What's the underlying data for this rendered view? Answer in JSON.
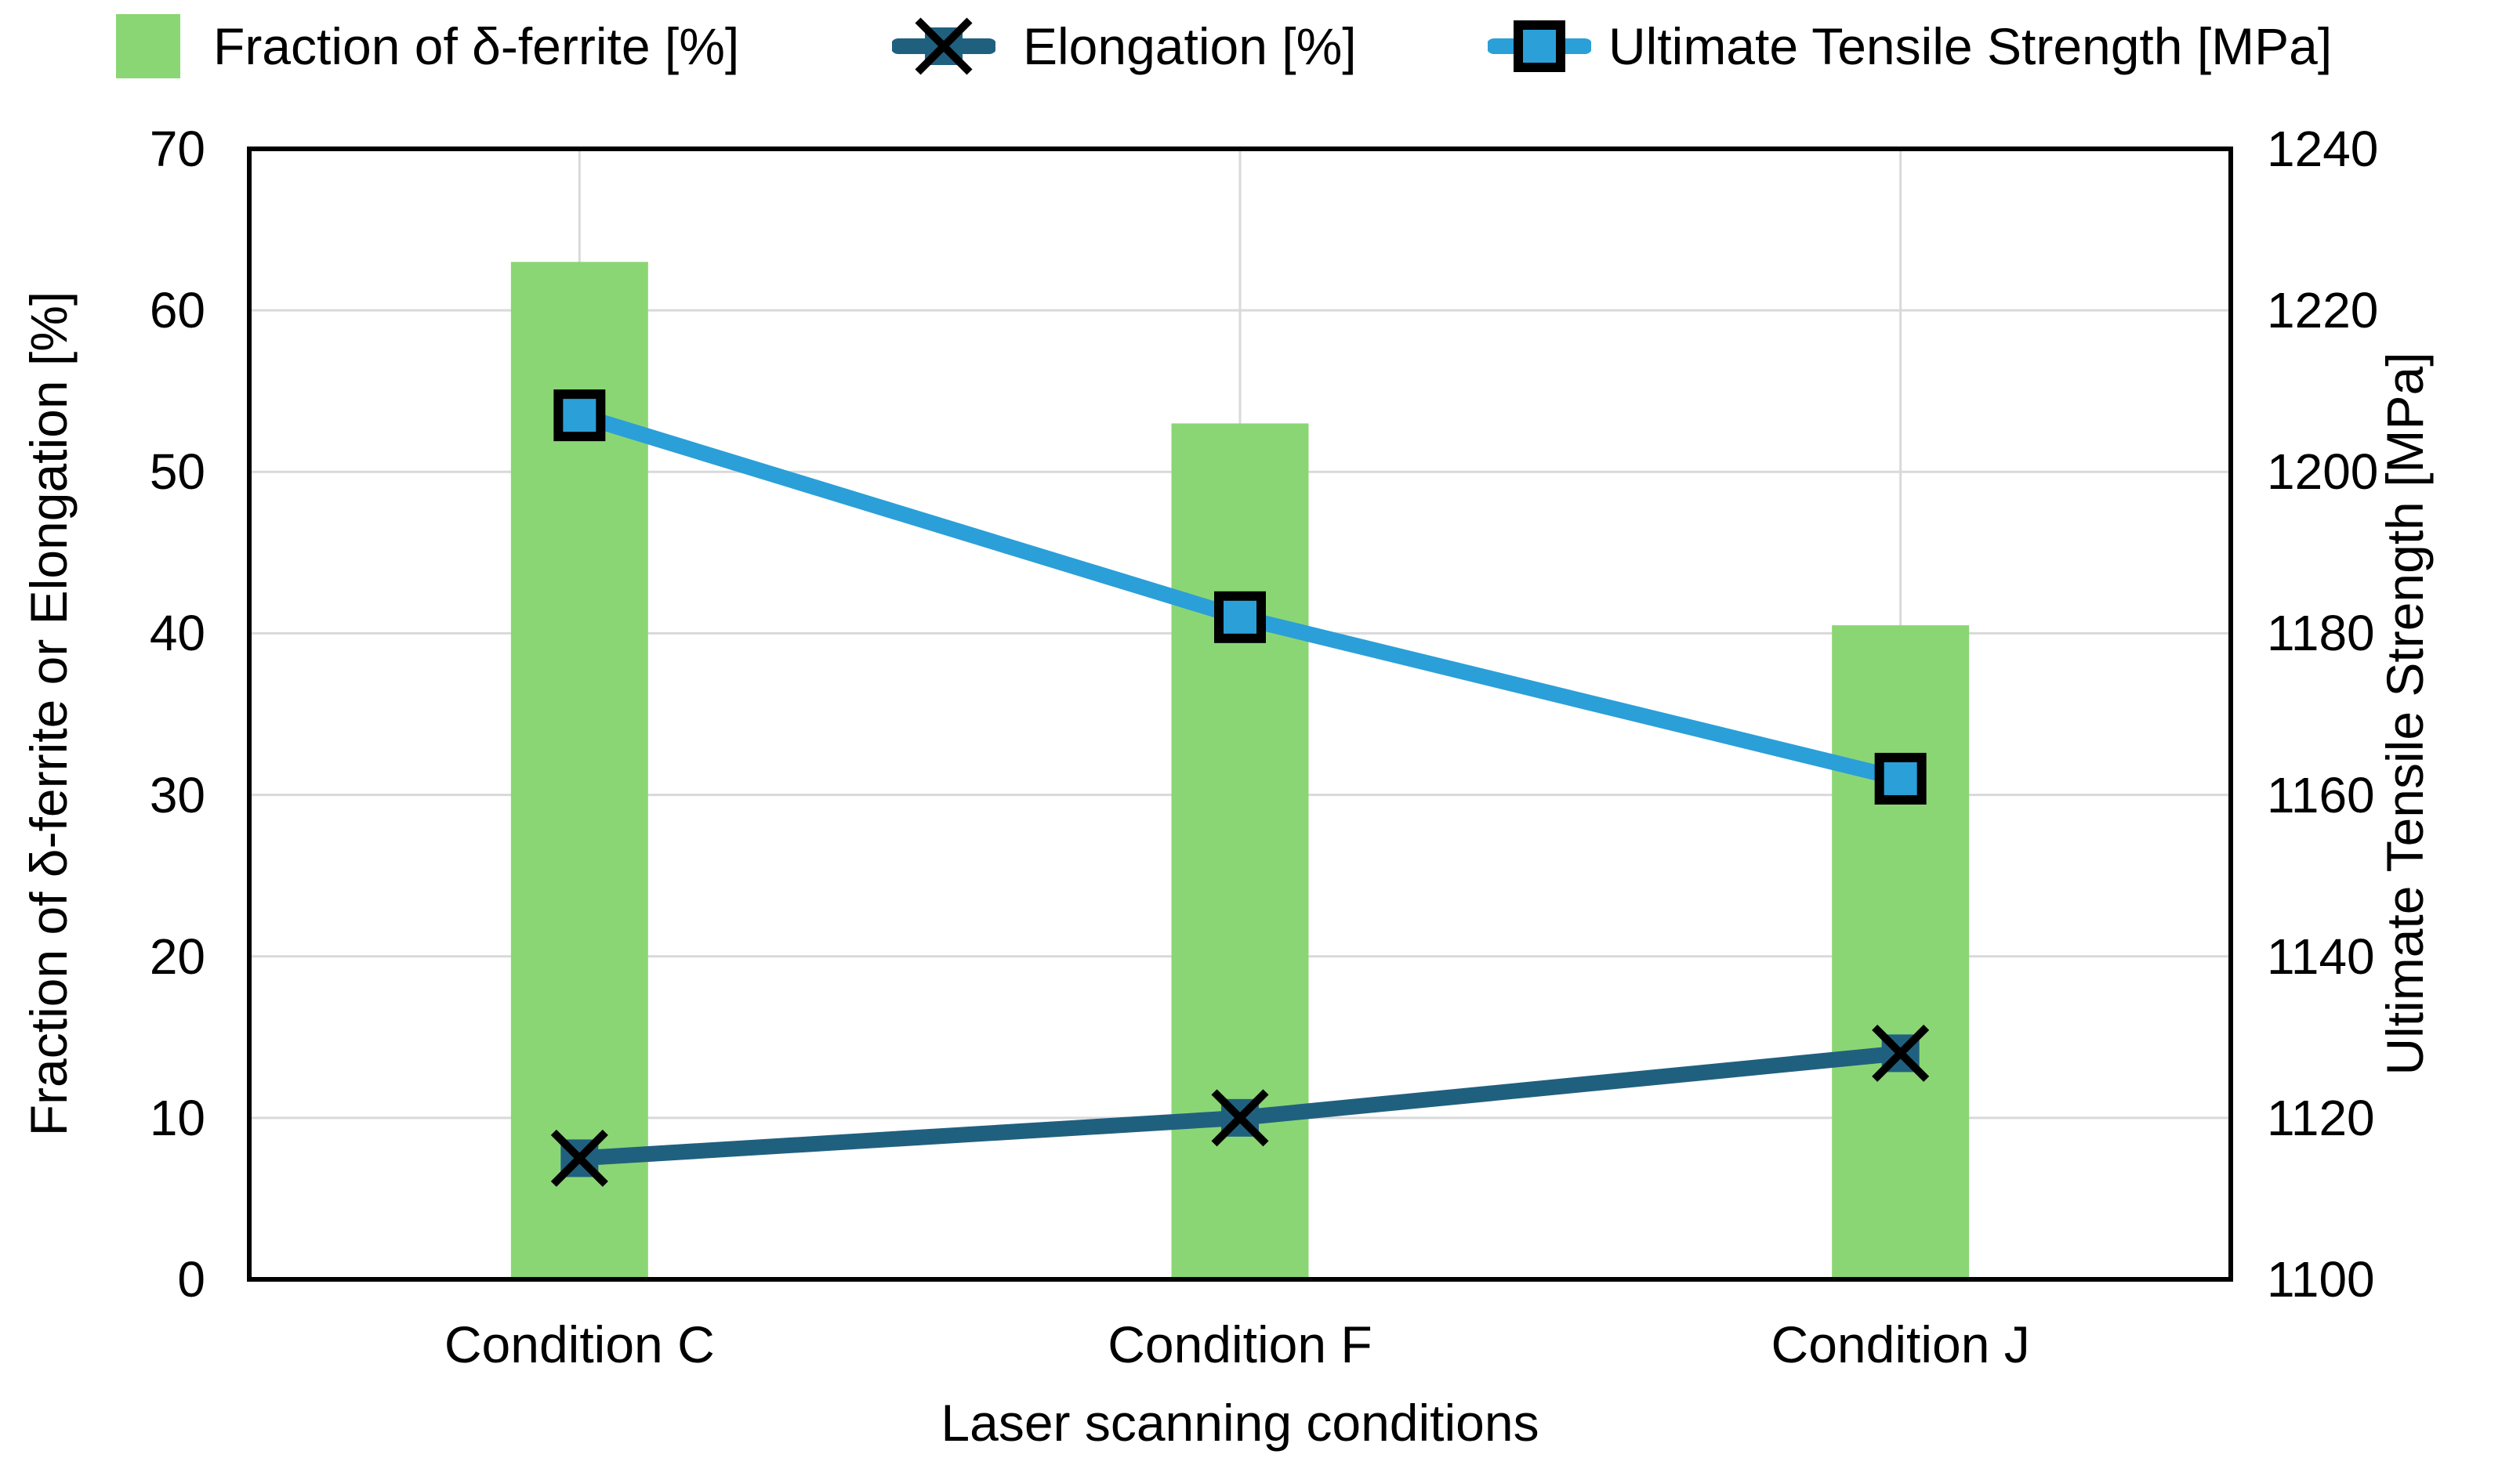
{
  "chart_data": {
    "type": "bar+line combo",
    "title": "",
    "xlabel": "Laser scanning conditions",
    "categories": [
      "Condition C",
      "Condition F",
      "Condition J"
    ],
    "series": [
      {
        "name": "Fraction of δ-ferrite [%]",
        "type": "bar",
        "axis": "left",
        "color": "#8BD674",
        "values": [
          63,
          53,
          40.5
        ]
      },
      {
        "name": "Elongation [%]",
        "type": "line",
        "axis": "left",
        "marker": "square-with-x",
        "color": "#20607F",
        "marker_cross_color": "#000000",
        "values": [
          7.5,
          10,
          14
        ]
      },
      {
        "name": "Ultimate Tensile Strength [MPa]",
        "type": "line",
        "axis": "right",
        "marker": "square",
        "marker_border_color": "#000000",
        "color": "#2B9FD8",
        "values": [
          1207,
          1182,
          1162
        ]
      }
    ],
    "left_axis": {
      "label": "Fraction of δ-ferrite or Elongation [%]",
      "min": 0,
      "max": 70,
      "step": 10,
      "ticks": [
        0,
        10,
        20,
        30,
        40,
        50,
        60,
        70
      ]
    },
    "right_axis": {
      "label": "Ultimate Tensile Strength [MPa]",
      "min": 1100,
      "max": 1240,
      "step": 20,
      "ticks": [
        1100,
        1120,
        1140,
        1160,
        1180,
        1200,
        1220,
        1240
      ]
    },
    "grid": {
      "show": true,
      "color": "#D9D9D9"
    },
    "plot_border_color": "#000000",
    "legend_position": "top"
  }
}
